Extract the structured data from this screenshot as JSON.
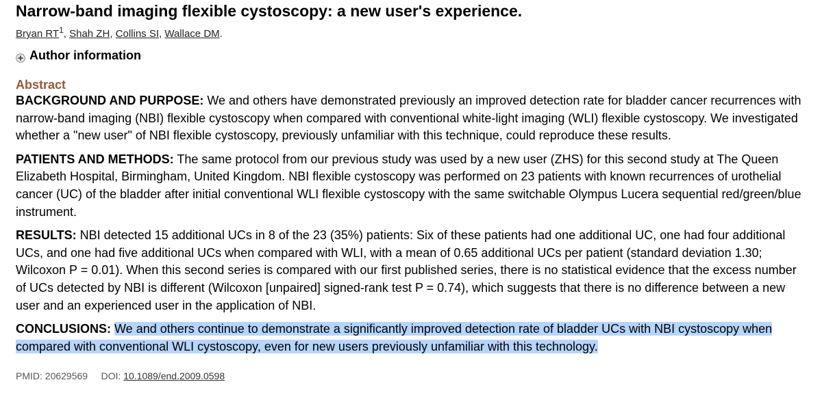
{
  "article": {
    "title": "Narrow-band imaging flexible cystoscopy: a new user's experience.",
    "authors": [
      {
        "name": "Bryan RT",
        "sup": "1"
      },
      {
        "name": "Shah ZH",
        "sup": ""
      },
      {
        "name": "Collins SI",
        "sup": ""
      },
      {
        "name": "Wallace DM",
        "sup": ""
      }
    ],
    "author_sep": ", ",
    "author_end": ".",
    "author_info_label": "Author information",
    "abstract_heading": "Abstract",
    "sections": {
      "background": {
        "label": "BACKGROUND AND PURPOSE:",
        "text": " We and others have demonstrated previously an improved detection rate for bladder cancer recurrences with narrow-band imaging (NBI) flexible cystoscopy when compared with conventional white-light imaging (WLI) flexible cystoscopy. We investigated whether a \"new user\" of NBI flexible cystoscopy, previously unfamiliar with this technique, could reproduce these results."
      },
      "methods": {
        "label": "PATIENTS AND METHODS:",
        "text": " The same protocol from our previous study was used by a new user (ZHS) for this second study at The Queen Elizabeth Hospital, Birmingham, United Kingdom. NBI flexible cystoscopy was performed on 23 patients with known recurrences of urothelial cancer (UC) of the bladder after initial conventional WLI flexible cystoscopy with the same switchable Olympus Lucera sequential red/green/blue instrument."
      },
      "results": {
        "label": "RESULTS:",
        "text": " NBI detected 15 additional UCs in 8 of the 23 (35%) patients: Six of these patients had one additional UC, one had four additional UCs, and one had five additional UCs when compared with WLI, with a mean of 0.65 additional UCs per patient (standard deviation 1.30; Wilcoxon P = 0.01). When this second series is compared with our first published series, there is no statistical evidence that the excess number of UCs detected by NBI is different (Wilcoxon [unpaired] signed-rank test P = 0.74), which suggests that there is no difference between a new user and an experienced user in the application of NBI."
      },
      "conclusions": {
        "label": "CONCLUSIONS:",
        "space": " ",
        "text": "We and others continue to demonstrate a significantly improved detection rate of bladder UCs with NBI cystoscopy when compared with conventional WLI cystoscopy, even for new users previously unfamiliar with this technology."
      }
    },
    "pmid_label": "PMID:",
    "pmid": "20629569",
    "doi_label": "DOI:",
    "doi": "10.1089/end.2009.0598"
  },
  "colors": {
    "abstract_heading": "#985735",
    "highlight": "#b5d5fd"
  },
  "icons": {
    "expand": "plus-circle-icon"
  }
}
